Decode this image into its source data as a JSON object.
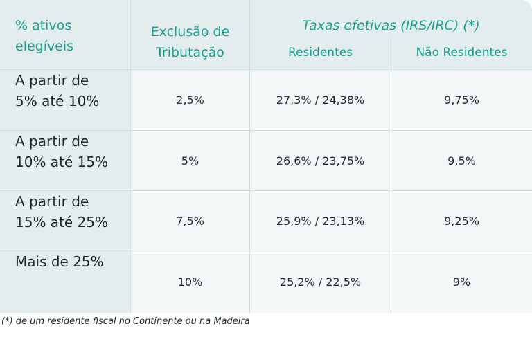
{
  "header": {
    "col1": [
      "% ativos",
      "elegíveis"
    ],
    "col2": [
      "Exclusão de",
      "Tributação"
    ],
    "taxes_title": "Taxas efetivas (IRS/IRC) (*)",
    "residentes": "Residentes",
    "nao_residentes": "Não Residentes"
  },
  "rows": [
    {
      "label": [
        "A partir de",
        "5% até 10%"
      ],
      "exclusao": "2,5%",
      "residentes": "27,3% / 24,38%",
      "nao_residentes": "9,75%"
    },
    {
      "label": [
        "A partir de",
        "10% até 15%"
      ],
      "exclusao": "5%",
      "residentes": "26,6% / 23,75%",
      "nao_residentes": "9,5%"
    },
    {
      "label": [
        "A partir de",
        "15% até 25%"
      ],
      "exclusao": "7,5%",
      "residentes": "25,9% / 23,13%",
      "nao_residentes": "9,25%"
    },
    {
      "label": [
        "Mais de 25%"
      ],
      "exclusao": "10%",
      "residentes": "25,2% / 22,5%",
      "nao_residentes": "9%"
    }
  ],
  "footnote": "(*) de um residente fiscal no Continente ou na Madeira",
  "colors": {
    "accent": "#1aa08f",
    "header_bg": "#e3eded",
    "body_bg": "#f3f7f7",
    "border": "#cfdcdc"
  }
}
